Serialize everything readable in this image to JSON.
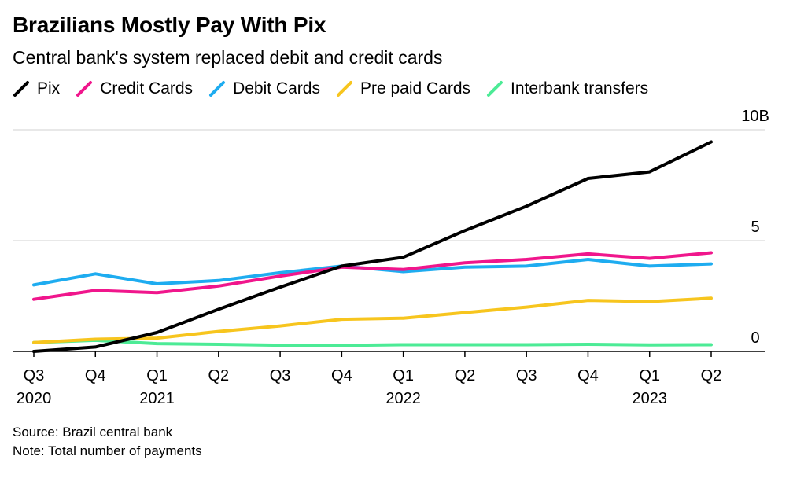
{
  "title": "Brazilians Mostly Pay With Pix",
  "subtitle": "Central bank's system replaced debit and credit cards",
  "source": "Source: Brazil central bank",
  "note": "Note: Total number of payments",
  "chart_data": {
    "type": "line",
    "title": "Brazilians Mostly Pay With Pix",
    "subtitle": "Central bank's system replaced debit and credit cards",
    "xlabel": "",
    "ylabel": "",
    "ylim": [
      0,
      10
    ],
    "y_ticks": [
      0,
      5,
      10
    ],
    "y_tick_labels": [
      "0",
      "5",
      "10B"
    ],
    "grid": true,
    "legend_position": "top-left",
    "categories": [
      "Q3",
      "Q4",
      "Q1",
      "Q2",
      "Q3",
      "Q4",
      "Q1",
      "Q2",
      "Q3",
      "Q4",
      "Q1",
      "Q2"
    ],
    "year_labels": [
      {
        "index": 0,
        "label": "2020"
      },
      {
        "index": 2,
        "label": "2021"
      },
      {
        "index": 6,
        "label": "2022"
      },
      {
        "index": 10,
        "label": "2023"
      }
    ],
    "series": [
      {
        "name": "Pix",
        "color": "#000000",
        "values": [
          0.0,
          0.2,
          0.85,
          1.9,
          2.9,
          3.85,
          4.25,
          5.45,
          6.55,
          7.8,
          8.1,
          9.45
        ]
      },
      {
        "name": "Credit Cards",
        "color": "#f0168c",
        "values": [
          2.35,
          2.75,
          2.65,
          2.95,
          3.4,
          3.8,
          3.7,
          4.0,
          4.15,
          4.4,
          4.2,
          4.45
        ]
      },
      {
        "name": "Debit Cards",
        "color": "#1eacf0",
        "values": [
          3.0,
          3.5,
          3.05,
          3.2,
          3.55,
          3.85,
          3.6,
          3.8,
          3.85,
          4.15,
          3.85,
          3.95
        ]
      },
      {
        "name": "Pre paid Cards",
        "color": "#f7c51e",
        "values": [
          0.4,
          0.55,
          0.6,
          0.9,
          1.15,
          1.45,
          1.5,
          1.75,
          2.0,
          2.3,
          2.25,
          2.4
        ]
      },
      {
        "name": "Interbank transfers",
        "color": "#4ceb96",
        "values": [
          0.4,
          0.5,
          0.35,
          0.32,
          0.28,
          0.27,
          0.3,
          0.3,
          0.3,
          0.32,
          0.29,
          0.3
        ]
      }
    ]
  }
}
